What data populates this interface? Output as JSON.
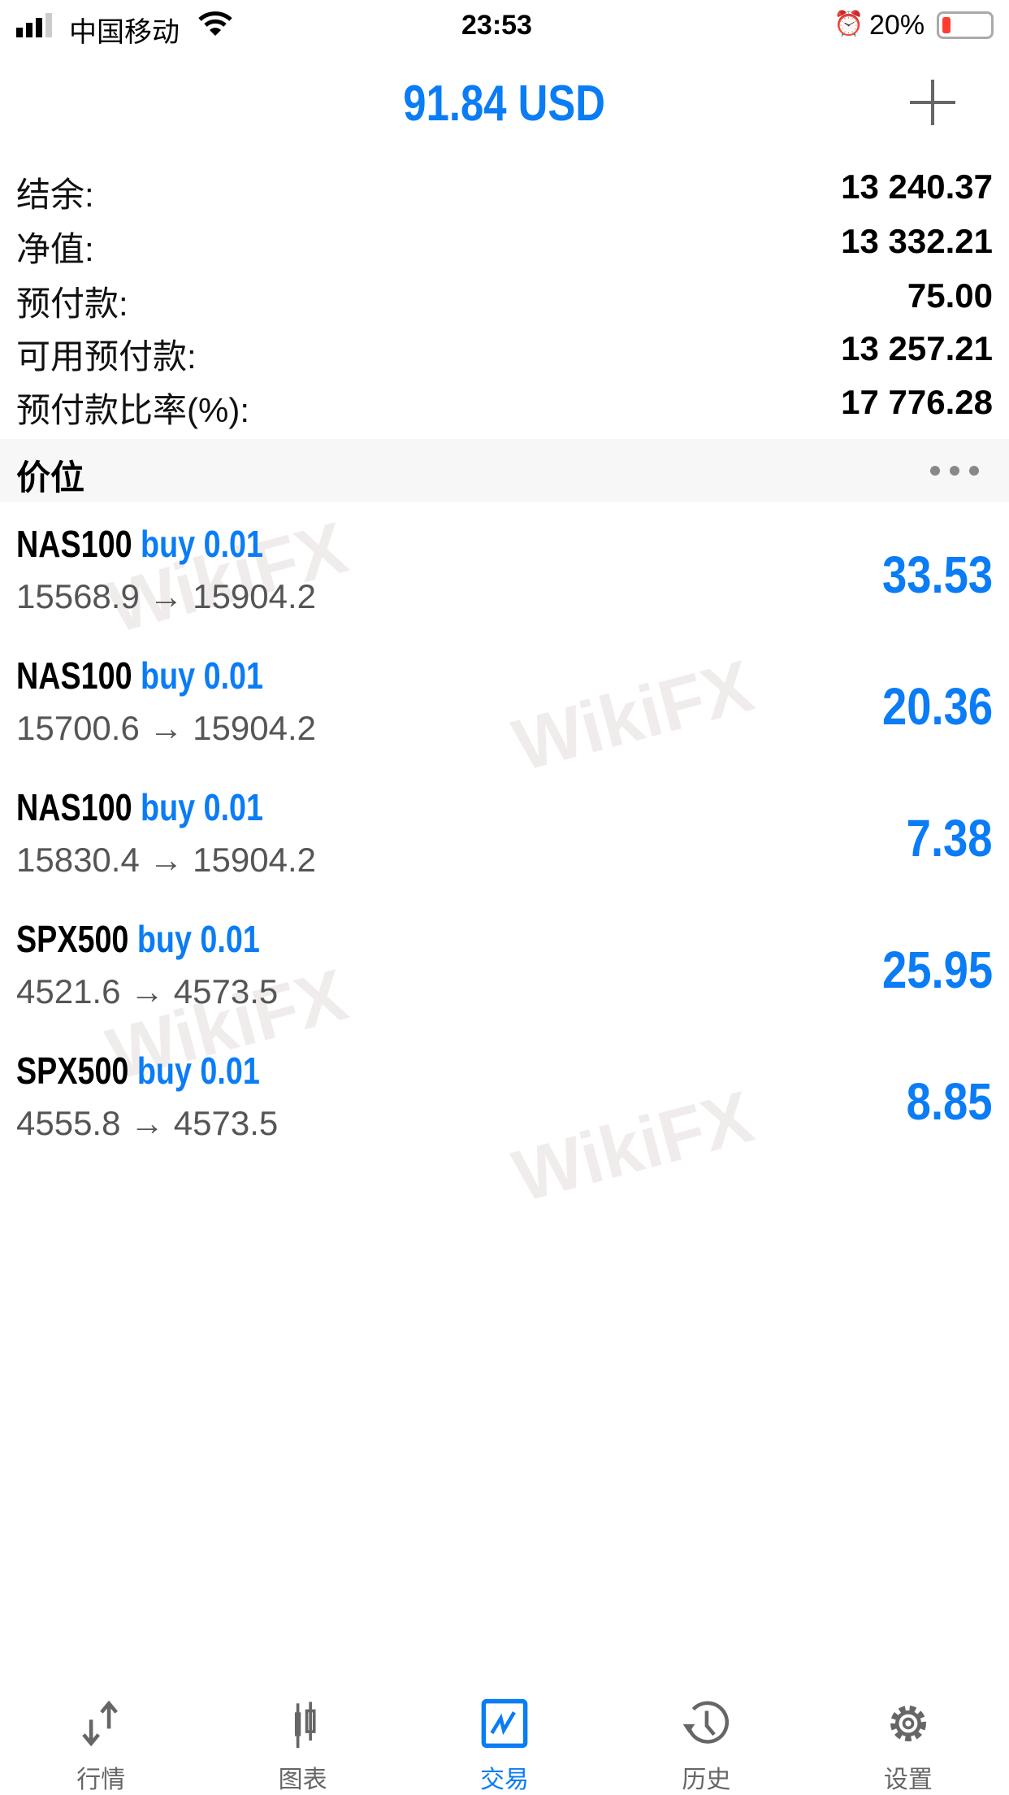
{
  "status_bar": {
    "carrier": "中国移动",
    "time": "23:53",
    "battery": "20%"
  },
  "header": {
    "title": "91.84 USD",
    "add_icon": "plus-icon"
  },
  "summary": [
    {
      "label": "结余:",
      "value": "13 240.37"
    },
    {
      "label": "净值:",
      "value": "13 332.21"
    },
    {
      "label": "预付款:",
      "value": "75.00"
    },
    {
      "label": "可用预付款:",
      "value": "13 257.21"
    },
    {
      "label": "预付款比率(%):",
      "value": "17 776.28"
    }
  ],
  "section": {
    "title": "价位",
    "more_icon": "more-icon"
  },
  "positions": [
    {
      "symbol": "NAS100",
      "side": "buy 0.01",
      "prices": "15568.9 → 15904.2",
      "profit": "33.53"
    },
    {
      "symbol": "NAS100",
      "side": "buy 0.01",
      "prices": "15700.6 → 15904.2",
      "profit": "20.36"
    },
    {
      "symbol": "NAS100",
      "side": "buy 0.01",
      "prices": "15830.4 → 15904.2",
      "profit": "7.38"
    },
    {
      "symbol": "SPX500",
      "side": "buy 0.01",
      "prices": "4521.6 → 4573.5",
      "profit": "25.95"
    },
    {
      "symbol": "SPX500",
      "side": "buy 0.01",
      "prices": "4555.8 → 4573.5",
      "profit": "8.85"
    }
  ],
  "watermark": "WikiFX",
  "nav": [
    {
      "label": "行情",
      "icon": "quotes-arrows-icon"
    },
    {
      "label": "图表",
      "icon": "candlestick-icon"
    },
    {
      "label": "交易",
      "icon": "trade-chart-icon",
      "active": true
    },
    {
      "label": "历史",
      "icon": "history-icon"
    },
    {
      "label": "设置",
      "icon": "gear-icon"
    }
  ],
  "colors": {
    "accent": "#0a7cf5",
    "battery_low": "#ff3b30"
  }
}
